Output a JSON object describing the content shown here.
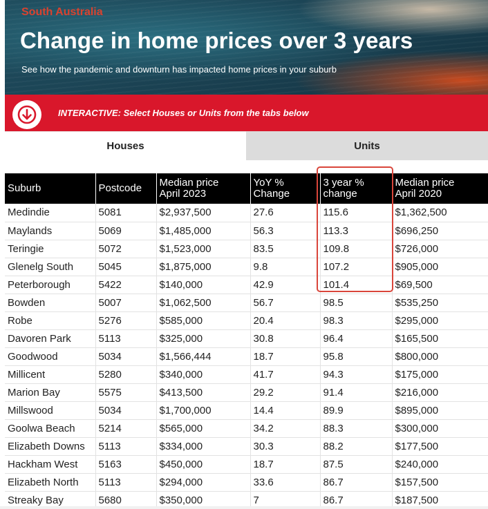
{
  "header": {
    "region": "South Australia",
    "title": "Change in home prices over 3 years",
    "subtitle": "See how the pandemic and downturn has impacted home prices in your suburb"
  },
  "banner": {
    "icon": "arrow-down-circle-icon",
    "text": "INTERACTIVE: Select Houses or Units from the tabs below",
    "color": "#d9172b"
  },
  "tabs": [
    {
      "label": "Houses",
      "active": true
    },
    {
      "label": "Units",
      "active": false
    }
  ],
  "table": {
    "columns": [
      {
        "line1": "Suburb",
        "line2": ""
      },
      {
        "line1": "Postcode",
        "line2": ""
      },
      {
        "line1": "Median price",
        "line2": "April 2023"
      },
      {
        "line1": "YoY %",
        "line2": "Change"
      },
      {
        "line1": "3 year %",
        "line2": "change"
      },
      {
        "line1": "Median price",
        "line2": "April 2020"
      }
    ],
    "rows": [
      [
        "Medindie",
        "5081",
        "$2,937,500",
        "27.6",
        "115.6",
        "$1,362,500"
      ],
      [
        "Maylands",
        "5069",
        "$1,485,000",
        "56.3",
        "113.3",
        "$696,250"
      ],
      [
        "Teringie",
        "5072",
        "$1,523,000",
        "83.5",
        "109.8",
        "$726,000"
      ],
      [
        "Glenelg South",
        "5045",
        "$1,875,000",
        "9.8",
        "107.2",
        "$905,000"
      ],
      [
        "Peterborough",
        "5422",
        "$140,000",
        "42.9",
        "101.4",
        "$69,500"
      ],
      [
        "Bowden",
        "5007",
        "$1,062,500",
        "56.7",
        "98.5",
        "$535,250"
      ],
      [
        "Robe",
        "5276",
        "$585,000",
        "20.4",
        "98.3",
        "$295,000"
      ],
      [
        "Davoren Park",
        "5113",
        "$325,000",
        "30.8",
        "96.4",
        "$165,500"
      ],
      [
        "Goodwood",
        "5034",
        "$1,566,444",
        "18.7",
        "95.8",
        "$800,000"
      ],
      [
        "Millicent",
        "5280",
        "$340,000",
        "41.7",
        "94.3",
        "$175,000"
      ],
      [
        "Marion Bay",
        "5575",
        "$413,500",
        "29.2",
        "91.4",
        "$216,000"
      ],
      [
        "Millswood",
        "5034",
        "$1,700,000",
        "14.4",
        "89.9",
        "$895,000"
      ],
      [
        "Goolwa Beach",
        "5214",
        "$565,000",
        "34.2",
        "88.3",
        "$300,000"
      ],
      [
        "Elizabeth Downs",
        "5113",
        "$334,000",
        "30.3",
        "88.2",
        "$177,500"
      ],
      [
        "Hackham West",
        "5163",
        "$450,000",
        "18.7",
        "87.5",
        "$240,000"
      ],
      [
        "Elizabeth North",
        "5113",
        "$294,000",
        "33.6",
        "86.7",
        "$157,500"
      ],
      [
        "Streaky Bay",
        "5680",
        "$350,000",
        "7",
        "86.7",
        "$187,500"
      ]
    ]
  },
  "colors": {
    "accent_red": "#d9172b",
    "region_text": "#d9432f",
    "highlight_box": "#d9453a",
    "header_bg": "#000000"
  }
}
